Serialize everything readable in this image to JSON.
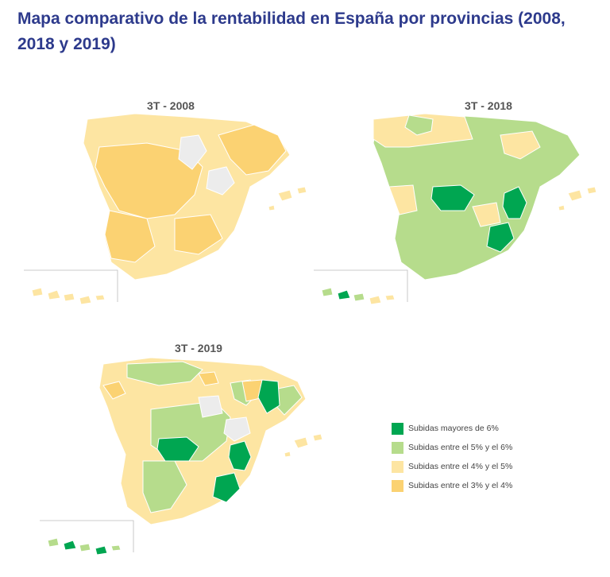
{
  "title": "Mapa comparativo de la rentabilidad en España por provincias (2008, 2018 y 2019)",
  "colors": {
    "dark_green": "#00a651",
    "light_green": "#b6dc8c",
    "light_yellow": "#fde5a2",
    "orange_yellow": "#fbd272",
    "no_data": "#ececec",
    "border": "#cfcfcf"
  },
  "maps": [
    {
      "label": "3T - 2008"
    },
    {
      "label": "3T - 2018"
    },
    {
      "label": "3T - 2019"
    }
  ],
  "legend": {
    "items": [
      {
        "label": "Subidas mayores de 6%",
        "color": "#00a651"
      },
      {
        "label": "Subidas entre el 5% y el 6%",
        "color": "#b6dc8c"
      },
      {
        "label": "Subidas entre el 4% y el 5%",
        "color": "#fde5a2"
      },
      {
        "label": "Subidas entre el 3% y el 4%",
        "color": "#fbd272"
      }
    ]
  }
}
